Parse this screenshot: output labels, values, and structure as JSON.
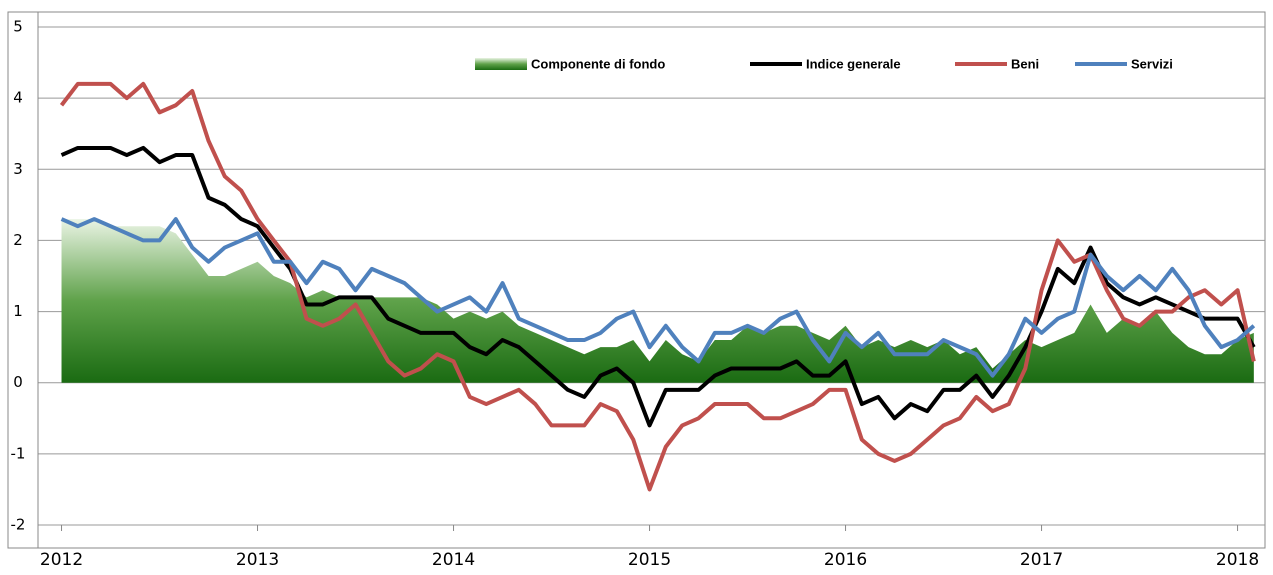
{
  "chart_data": {
    "type": "line",
    "x": [
      2012,
      2012.083,
      2012.167,
      2012.25,
      2012.333,
      2012.417,
      2012.5,
      2012.583,
      2012.667,
      2012.75,
      2012.833,
      2012.917,
      2013,
      2013.083,
      2013.167,
      2013.25,
      2013.333,
      2013.417,
      2013.5,
      2013.583,
      2013.667,
      2013.75,
      2013.833,
      2013.917,
      2014,
      2014.083,
      2014.167,
      2014.25,
      2014.333,
      2014.417,
      2014.5,
      2014.583,
      2014.667,
      2014.75,
      2014.833,
      2014.917,
      2015,
      2015.083,
      2015.167,
      2015.25,
      2015.333,
      2015.417,
      2015.5,
      2015.583,
      2015.667,
      2015.75,
      2015.833,
      2015.917,
      2016,
      2016.083,
      2016.167,
      2016.25,
      2016.333,
      2016.417,
      2016.5,
      2016.583,
      2016.667,
      2016.75,
      2016.833,
      2016.917,
      2017,
      2017.083,
      2017.167,
      2017.25,
      2017.333,
      2017.417,
      2017.5,
      2017.583,
      2017.667,
      2017.75,
      2017.833,
      2017.917,
      2018,
      2018.083
    ],
    "series": [
      {
        "name": "Componente di fondo",
        "type": "area",
        "color": "#2a7a1c",
        "values": [
          2.3,
          2.3,
          2.3,
          2.2,
          2.2,
          2.2,
          2.2,
          2.1,
          1.8,
          1.5,
          1.5,
          1.6,
          1.7,
          1.5,
          1.4,
          1.2,
          1.3,
          1.2,
          1.2,
          1.2,
          1.2,
          1.2,
          1.2,
          1.1,
          0.9,
          1.0,
          0.9,
          1.0,
          0.8,
          0.7,
          0.6,
          0.5,
          0.4,
          0.5,
          0.5,
          0.6,
          0.3,
          0.6,
          0.4,
          0.3,
          0.6,
          0.6,
          0.8,
          0.7,
          0.8,
          0.8,
          0.7,
          0.6,
          0.8,
          0.5,
          0.6,
          0.5,
          0.6,
          0.5,
          0.6,
          0.4,
          0.5,
          0.2,
          0.4,
          0.6,
          0.5,
          0.6,
          0.7,
          1.1,
          0.7,
          0.9,
          0.8,
          1.0,
          0.7,
          0.5,
          0.4,
          0.4,
          0.6,
          0.7
        ]
      },
      {
        "name": "Indice generale",
        "type": "line",
        "color": "#000000",
        "values": [
          3.2,
          3.3,
          3.3,
          3.3,
          3.2,
          3.3,
          3.1,
          3.2,
          3.2,
          2.6,
          2.5,
          2.3,
          2.2,
          1.9,
          1.6,
          1.1,
          1.1,
          1.2,
          1.2,
          1.2,
          0.9,
          0.8,
          0.7,
          0.7,
          0.7,
          0.5,
          0.4,
          0.6,
          0.5,
          0.3,
          0.1,
          -0.1,
          -0.2,
          0.1,
          0.2,
          0.0,
          -0.6,
          -0.1,
          -0.1,
          -0.1,
          0.1,
          0.2,
          0.2,
          0.2,
          0.2,
          0.3,
          0.1,
          0.1,
          0.3,
          -0.3,
          -0.2,
          -0.5,
          -0.3,
          -0.4,
          -0.1,
          -0.1,
          0.1,
          -0.2,
          0.1,
          0.5,
          1.0,
          1.6,
          1.4,
          1.9,
          1.4,
          1.2,
          1.1,
          1.2,
          1.1,
          1.0,
          0.9,
          0.9,
          0.9,
          0.5
        ]
      },
      {
        "name": "Beni",
        "type": "line",
        "color": "#c0504d",
        "values": [
          3.9,
          4.2,
          4.2,
          4.2,
          4.0,
          4.2,
          3.8,
          3.9,
          4.1,
          3.4,
          2.9,
          2.7,
          2.3,
          2.0,
          1.7,
          0.9,
          0.8,
          0.9,
          1.1,
          0.7,
          0.3,
          0.1,
          0.2,
          0.4,
          0.3,
          -0.2,
          -0.3,
          -0.2,
          -0.1,
          -0.3,
          -0.6,
          -0.6,
          -0.6,
          -0.3,
          -0.4,
          -0.8,
          -1.5,
          -0.9,
          -0.6,
          -0.5,
          -0.3,
          -0.3,
          -0.3,
          -0.5,
          -0.5,
          -0.4,
          -0.3,
          -0.1,
          -0.1,
          -0.8,
          -1.0,
          -1.1,
          -1.0,
          -0.8,
          -0.6,
          -0.5,
          -0.2,
          -0.4,
          -0.3,
          0.2,
          1.3,
          2.0,
          1.7,
          1.8,
          1.3,
          0.9,
          0.8,
          1.0,
          1.0,
          1.2,
          1.3,
          1.1,
          1.3,
          0.3
        ]
      },
      {
        "name": "Servizi",
        "type": "line",
        "color": "#4f81bd",
        "values": [
          2.3,
          2.2,
          2.3,
          2.2,
          2.1,
          2.0,
          2.0,
          2.3,
          1.9,
          1.7,
          1.9,
          2.0,
          2.1,
          1.7,
          1.7,
          1.4,
          1.7,
          1.6,
          1.3,
          1.6,
          1.5,
          1.4,
          1.2,
          1.0,
          1.1,
          1.2,
          1.0,
          1.4,
          0.9,
          0.8,
          0.7,
          0.6,
          0.6,
          0.7,
          0.9,
          1.0,
          0.5,
          0.8,
          0.5,
          0.3,
          0.7,
          0.7,
          0.8,
          0.7,
          0.9,
          1.0,
          0.6,
          0.3,
          0.7,
          0.5,
          0.7,
          0.4,
          0.4,
          0.4,
          0.6,
          0.5,
          0.4,
          0.1,
          0.4,
          0.9,
          0.7,
          0.9,
          1.0,
          1.8,
          1.5,
          1.3,
          1.5,
          1.3,
          1.6,
          1.3,
          0.8,
          0.5,
          0.6,
          0.8
        ]
      }
    ],
    "xlim": [
      2011.88,
      2018.14
    ],
    "xticks": [
      2012,
      2013,
      2014,
      2015,
      2016,
      2017,
      2018
    ],
    "ylim": [
      -2,
      5
    ],
    "yticks": [
      -2,
      -1,
      0,
      1,
      2,
      3,
      4,
      5
    ],
    "grid": true,
    "legend": "top-right"
  }
}
